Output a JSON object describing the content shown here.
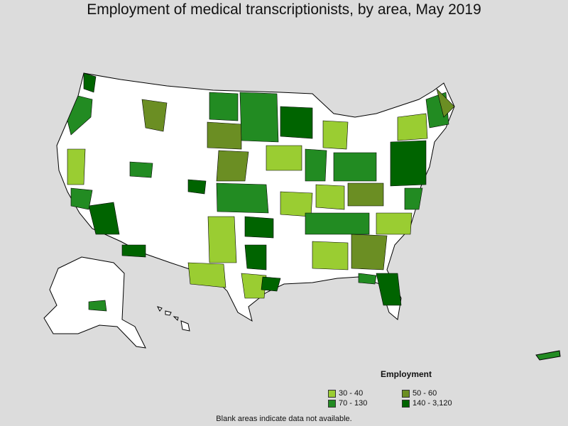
{
  "title": "Employment of medical transcriptionists, by area, May 2019",
  "legend": {
    "title": "Employment",
    "items": [
      {
        "label": "30 - 40",
        "color": "#9acd32"
      },
      {
        "label": "50 - 60",
        "color": "#6b8e23"
      },
      {
        "label": "70 - 130",
        "color": "#228b22"
      },
      {
        "label": "140 - 3,120",
        "color": "#006400"
      }
    ]
  },
  "footnote": "Blank areas indicate data not available.",
  "colors": {
    "background": "#dcdcdc",
    "land": "#ffffff",
    "border": "#000000"
  }
}
